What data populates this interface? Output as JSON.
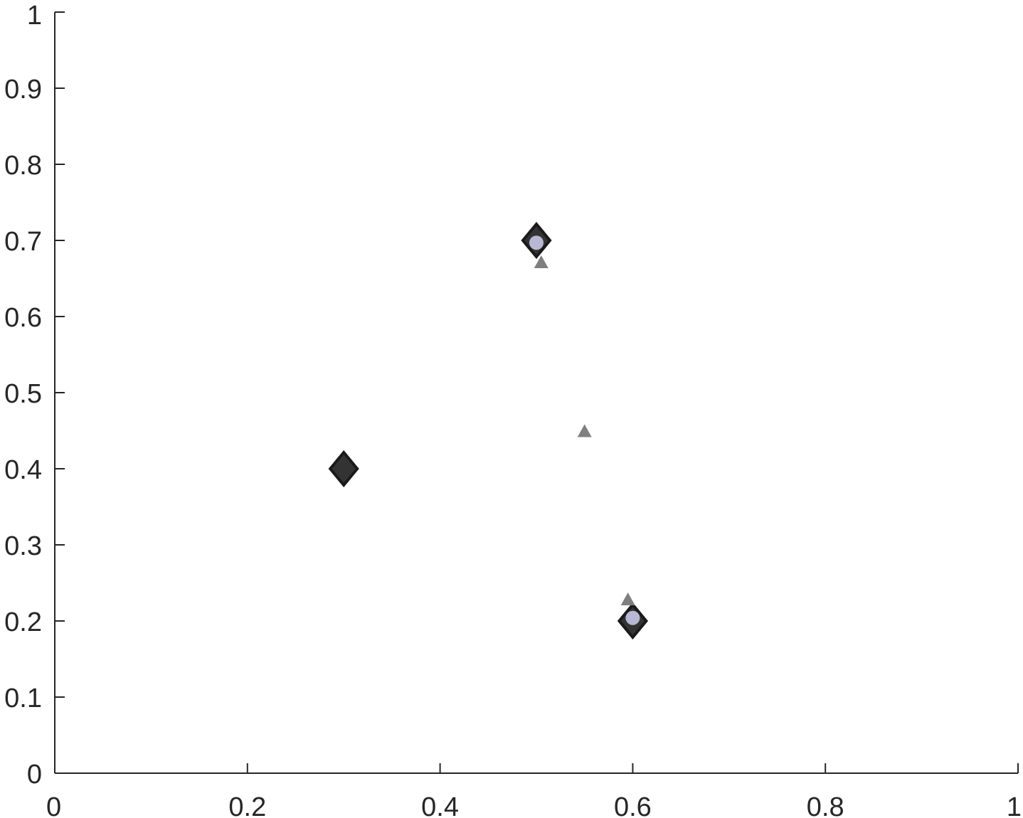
{
  "chart_data": {
    "type": "scatter",
    "title": "",
    "xlabel": "",
    "ylabel": "",
    "xlim": [
      0,
      1
    ],
    "ylim": [
      0,
      1
    ],
    "grid": false,
    "x_ticks": [
      0,
      0.2,
      0.4,
      0.6,
      0.8,
      1
    ],
    "x_tick_labels": [
      "0",
      "0.2",
      "0.4",
      "0.6",
      "0.8",
      "1"
    ],
    "y_ticks": [
      0,
      0.1,
      0.2,
      0.3,
      0.4,
      0.5,
      0.6,
      0.7,
      0.8,
      0.9,
      1
    ],
    "y_tick_labels": [
      "0",
      "0.1",
      "0.2",
      "0.3",
      "0.4",
      "0.5",
      "0.6",
      "0.7",
      "0.8",
      "0.9",
      "1"
    ],
    "series": [
      {
        "marker": "diamond",
        "color": "#1a1a1a",
        "points": [
          {
            "x": 0.3,
            "y": 0.4
          },
          {
            "x": 0.5,
            "y": 0.7
          },
          {
            "x": 0.6,
            "y": 0.2
          }
        ]
      },
      {
        "marker": "circle",
        "color": "#b8b8d4",
        "points": [
          {
            "x": 0.5,
            "y": 0.697
          },
          {
            "x": 0.6,
            "y": 0.204
          }
        ]
      },
      {
        "marker": "triangle",
        "color": "#7f7f7f",
        "points": [
          {
            "x": 0.505,
            "y": 0.672
          },
          {
            "x": 0.55,
            "y": 0.45
          },
          {
            "x": 0.595,
            "y": 0.229
          }
        ]
      }
    ]
  }
}
